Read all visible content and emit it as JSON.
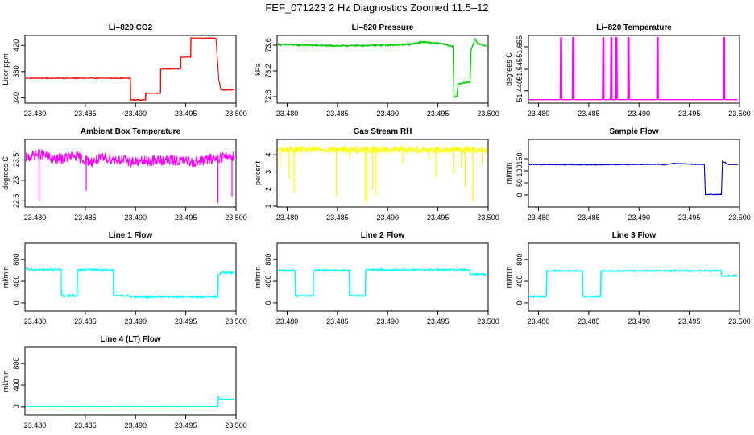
{
  "figure": {
    "title": "FEF_071223  2 Hz Diagnostics Zoomed 11.5–12"
  },
  "chart_data": [
    {
      "type": "line",
      "title": "Li–820 CO2",
      "ylabel": "Licor ppm",
      "color": "#ff0000",
      "xlim": [
        23.479,
        23.5
      ],
      "ylim": [
        332,
        435
      ],
      "xticks": [
        23.48,
        23.485,
        23.49,
        23.495,
        23.5
      ],
      "yticks": [
        340,
        380,
        420
      ],
      "noise": 0.6,
      "x": [
        23.479,
        23.4895,
        23.4895,
        23.491,
        23.491,
        23.4925,
        23.4925,
        23.4945,
        23.4945,
        23.4955,
        23.4955,
        23.498,
        23.4983,
        23.4985,
        23.4998
      ],
      "y": [
        370,
        370,
        337,
        337,
        347,
        347,
        384,
        384,
        402,
        402,
        431,
        431,
        366,
        352,
        352
      ]
    },
    {
      "type": "line",
      "title": "Li–820 Pressure",
      "ylabel": "kPa",
      "color": "#00cc00",
      "xlim": [
        23.479,
        23.5
      ],
      "ylim": [
        72.7,
        73.75
      ],
      "xticks": [
        23.48,
        23.485,
        23.49,
        23.495,
        23.5
      ],
      "yticks": [
        72.8,
        73.2,
        73.6
      ],
      "noise": 0.01,
      "x": [
        23.479,
        23.485,
        23.49,
        23.492,
        23.4935,
        23.4955,
        23.4965,
        23.4966,
        23.4969,
        23.497,
        23.4982,
        23.4983,
        23.4987,
        23.499,
        23.4998
      ],
      "y": [
        73.61,
        73.59,
        73.6,
        73.61,
        73.65,
        73.62,
        73.58,
        72.8,
        72.8,
        73.0,
        73.03,
        73.52,
        73.7,
        73.62,
        73.59
      ]
    },
    {
      "type": "line",
      "title": "Li–820 Temperature",
      "ylabel": "degrees C",
      "color": "#ff00ff",
      "xlim": [
        23.479,
        23.5
      ],
      "ylim": [
        51.38,
        51.71
      ],
      "xticks": [
        23.48,
        23.485,
        23.49,
        23.495,
        23.5
      ],
      "yticks": [
        51.44,
        51.545,
        51.655
      ],
      "ytick_labels": [
        "51.440",
        "51.545",
        "51.655"
      ],
      "noise": 0,
      "x": [
        23.479,
        23.4822,
        23.4822,
        23.4823,
        23.4823,
        23.4834,
        23.4834,
        23.4835,
        23.4835,
        23.4864,
        23.4864,
        23.4865,
        23.4865,
        23.4872,
        23.4872,
        23.4873,
        23.4873,
        23.4877,
        23.4877,
        23.4878,
        23.4878,
        23.4889,
        23.4889,
        23.489,
        23.489,
        23.4918,
        23.4918,
        23.4919,
        23.4919,
        23.4984,
        23.4984,
        23.4985,
        23.4985,
        23.4998
      ],
      "y": [
        51.397,
        51.397,
        51.7,
        51.7,
        51.397,
        51.397,
        51.7,
        51.7,
        51.397,
        51.397,
        51.7,
        51.7,
        51.397,
        51.397,
        51.7,
        51.7,
        51.397,
        51.397,
        51.7,
        51.7,
        51.397,
        51.397,
        51.7,
        51.7,
        51.397,
        51.397,
        51.7,
        51.7,
        51.397,
        51.397,
        51.7,
        51.7,
        51.397,
        51.397
      ]
    },
    {
      "type": "line",
      "title": "Ambient Box Temperature",
      "ylabel": "degrees C",
      "color": "#ff00ff",
      "xlim": [
        23.479,
        23.5
      ],
      "ylim": [
        22.35,
        24.0
      ],
      "xticks": [
        23.48,
        23.485,
        23.49,
        23.495,
        23.5
      ],
      "yticks": [
        22.5,
        23.0,
        23.5
      ],
      "noise": 0.13,
      "x": [
        23.479,
        23.4805,
        23.482,
        23.484,
        23.4855,
        23.487,
        23.49,
        23.493,
        23.496,
        23.498,
        23.4998
      ],
      "y": [
        23.55,
        23.65,
        23.5,
        23.6,
        23.45,
        23.55,
        23.45,
        23.5,
        23.45,
        23.55,
        23.6
      ],
      "spikes": [
        [
          23.4804,
          22.5
        ],
        [
          23.4851,
          22.75
        ],
        [
          23.4982,
          22.45
        ],
        [
          23.4996,
          22.6
        ]
      ]
    },
    {
      "type": "line",
      "title": "Gas Stream RH",
      "ylabel": "percent",
      "color": "#ffff00",
      "xlim": [
        23.479,
        23.5
      ],
      "ylim": [
        0.95,
        4.9
      ],
      "xticks": [
        23.48,
        23.485,
        23.49,
        23.495,
        23.5
      ],
      "yticks": [
        1,
        2,
        3,
        4
      ],
      "noise": 0.2,
      "x": [
        23.479,
        23.485,
        23.49,
        23.495,
        23.4998
      ],
      "y": [
        4.3,
        4.3,
        4.3,
        4.3,
        4.3
      ],
      "spikes": [
        [
          23.4793,
          3.3
        ],
        [
          23.4802,
          2.6
        ],
        [
          23.4807,
          1.8
        ],
        [
          23.4849,
          1.6
        ],
        [
          23.4862,
          3.8
        ],
        [
          23.4878,
          1.3
        ],
        [
          23.4879,
          1.1
        ],
        [
          23.4885,
          2.0
        ],
        [
          23.4888,
          1.6
        ],
        [
          23.4915,
          3.5
        ],
        [
          23.4941,
          3.7
        ],
        [
          23.4948,
          2.7
        ],
        [
          23.4965,
          2.9
        ],
        [
          23.4973,
          3.3
        ],
        [
          23.4977,
          2.1
        ],
        [
          23.4985,
          1.3
        ],
        [
          23.4994,
          3.4
        ]
      ]
    },
    {
      "type": "line",
      "title": "Sample Flow",
      "ylabel": "ml/min",
      "color": "#0000cc",
      "xlim": [
        23.479,
        23.5
      ],
      "ylim": [
        -50,
        230
      ],
      "xticks": [
        23.48,
        23.485,
        23.49,
        23.495,
        23.5
      ],
      "yticks": [
        0,
        50,
        100,
        150
      ],
      "noise": 1.5,
      "x": [
        23.479,
        23.485,
        23.49,
        23.492,
        23.4925,
        23.4935,
        23.4955,
        23.4965,
        23.4966,
        23.4982,
        23.4983,
        23.4986,
        23.4989,
        23.4998
      ],
      "y": [
        126,
        125,
        126,
        127,
        124,
        131,
        127,
        126,
        2,
        2,
        140,
        133,
        126,
        126
      ]
    },
    {
      "type": "line",
      "title": "Line 1 Flow",
      "ylabel": "ml/min",
      "color": "#00ffff",
      "xlim": [
        23.479,
        23.5
      ],
      "ylim": [
        -150,
        1100
      ],
      "xticks": [
        23.48,
        23.485,
        23.49,
        23.495,
        23.5
      ],
      "yticks": [
        0,
        400,
        800
      ],
      "noise": 18,
      "x": [
        23.479,
        23.4795,
        23.4826,
        23.4826,
        23.4842,
        23.4842,
        23.4878,
        23.4878,
        23.4895,
        23.4895,
        23.4982,
        23.4982,
        23.4986,
        23.4998
      ],
      "y": [
        640,
        610,
        610,
        130,
        130,
        610,
        610,
        130,
        130,
        110,
        110,
        520,
        560,
        560
      ]
    },
    {
      "type": "line",
      "title": "Line 2 Flow",
      "ylabel": "ml/min",
      "color": "#00ffff",
      "xlim": [
        23.479,
        23.5
      ],
      "ylim": [
        -150,
        1100
      ],
      "xticks": [
        23.48,
        23.485,
        23.49,
        23.495,
        23.5
      ],
      "yticks": [
        0,
        400,
        800
      ],
      "noise": 16,
      "x": [
        23.479,
        23.4808,
        23.4808,
        23.4826,
        23.4826,
        23.4862,
        23.4862,
        23.4878,
        23.4878,
        23.4982,
        23.4982,
        23.4998
      ],
      "y": [
        600,
        600,
        130,
        130,
        600,
        600,
        130,
        130,
        610,
        610,
        530,
        530
      ]
    },
    {
      "type": "line",
      "title": "Line 3 Flow",
      "ylabel": "ml/min",
      "color": "#00ffff",
      "xlim": [
        23.479,
        23.5
      ],
      "ylim": [
        -150,
        1100
      ],
      "xticks": [
        23.48,
        23.485,
        23.49,
        23.495,
        23.5
      ],
      "yticks": [
        0,
        400,
        800
      ],
      "noise": 16,
      "x": [
        23.479,
        23.4808,
        23.4808,
        23.4844,
        23.4844,
        23.4862,
        23.4862,
        23.4982,
        23.4982,
        23.4998
      ],
      "y": [
        115,
        115,
        590,
        590,
        115,
        115,
        590,
        590,
        500,
        500
      ]
    },
    {
      "type": "line",
      "title": "Line 4 (LT) Flow",
      "ylabel": "ml/min",
      "color": "#00ffff",
      "xlim": [
        23.479,
        23.5
      ],
      "ylim": [
        -150,
        1100
      ],
      "xticks": [
        23.48,
        23.485,
        23.49,
        23.495,
        23.5
      ],
      "yticks": [
        0,
        400,
        800
      ],
      "noise": 2,
      "x": [
        23.479,
        23.4982,
        23.4982,
        23.4984,
        23.4998
      ],
      "y": [
        8,
        8,
        200,
        140,
        140
      ]
    }
  ]
}
